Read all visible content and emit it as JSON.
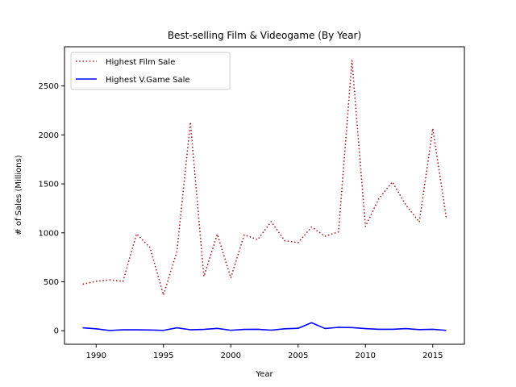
{
  "chart_data": {
    "type": "line",
    "title": "Best-selling Film & Videogame (By Year)",
    "xlabel": "Year",
    "ylabel": "# of Sales (Millions)",
    "xlim": [
      1987.65,
      2017.35
    ],
    "ylim": [
      -138,
      2900
    ],
    "xticks": [
      1990,
      1995,
      2000,
      2005,
      2010,
      2015
    ],
    "yticks": [
      0,
      500,
      1000,
      1500,
      2000,
      2500
    ],
    "legend_position": "upper-left",
    "grid": false,
    "x": [
      1989,
      1990,
      1991,
      1992,
      1993,
      1994,
      1995,
      1996,
      1997,
      1998,
      1999,
      2000,
      2001,
      2002,
      2003,
      2004,
      2005,
      2006,
      2007,
      2008,
      2009,
      2010,
      2011,
      2012,
      2013,
      2014,
      2015,
      2016
    ],
    "series": [
      {
        "name": "Highest Film Sale",
        "color": "#a52a2a",
        "style": "dotted",
        "values": [
          475,
          505,
          520,
          505,
          990,
          850,
          365,
          810,
          2130,
          555,
          985,
          540,
          980,
          930,
          1115,
          920,
          900,
          1060,
          965,
          1010,
          2760,
          1065,
          1350,
          1520,
          1285,
          1110,
          2065,
          1160
        ]
      },
      {
        "name": "Highest V.Game Sale",
        "color": "#0000ff",
        "style": "solid",
        "values": [
          30,
          20,
          3,
          10,
          10,
          8,
          4,
          30,
          10,
          14,
          24,
          5,
          14,
          15,
          6,
          20,
          25,
          82,
          23,
          35,
          32,
          22,
          15,
          15,
          22,
          12,
          15,
          4
        ]
      }
    ]
  }
}
